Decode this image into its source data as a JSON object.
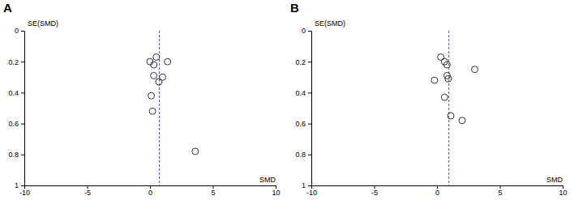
{
  "chart_data": [
    {
      "type": "scatter",
      "title": "A",
      "x_label": "SMD",
      "y_label": "SE(SMD)",
      "x": [
        0.0,
        0.5,
        0.3,
        1.4,
        0.3,
        1.0,
        0.7,
        0.1,
        0.2,
        3.6
      ],
      "values": [
        0.2,
        0.17,
        0.22,
        0.2,
        0.29,
        0.3,
        0.33,
        0.42,
        0.52,
        0.78
      ],
      "summary_smd": 0.75,
      "xlim": [
        -10,
        10
      ],
      "xticks": [
        -10,
        -5,
        0,
        5,
        10
      ],
      "ylim": [
        0,
        1
      ],
      "yticks": [
        0,
        0.2,
        0.4,
        0.6,
        0.8,
        1
      ],
      "marker": "circle"
    },
    {
      "type": "scatter",
      "title": "B",
      "x_label": "SMD",
      "y_label": "SE(SMD)",
      "x": [
        0.3,
        0.6,
        0.8,
        0.8,
        0.9,
        -0.2,
        3.0,
        0.6,
        1.1,
        2.0
      ],
      "values": [
        0.17,
        0.2,
        0.22,
        0.29,
        0.31,
        0.32,
        0.25,
        0.43,
        0.55,
        0.58
      ],
      "summary_smd": 0.95,
      "xlim": [
        -10,
        10
      ],
      "xticks": [
        -10,
        -5,
        0,
        5,
        10
      ],
      "ylim": [
        0,
        1
      ],
      "yticks": [
        0,
        0.2,
        0.4,
        0.6,
        0.8,
        1
      ],
      "marker": "circle"
    }
  ]
}
